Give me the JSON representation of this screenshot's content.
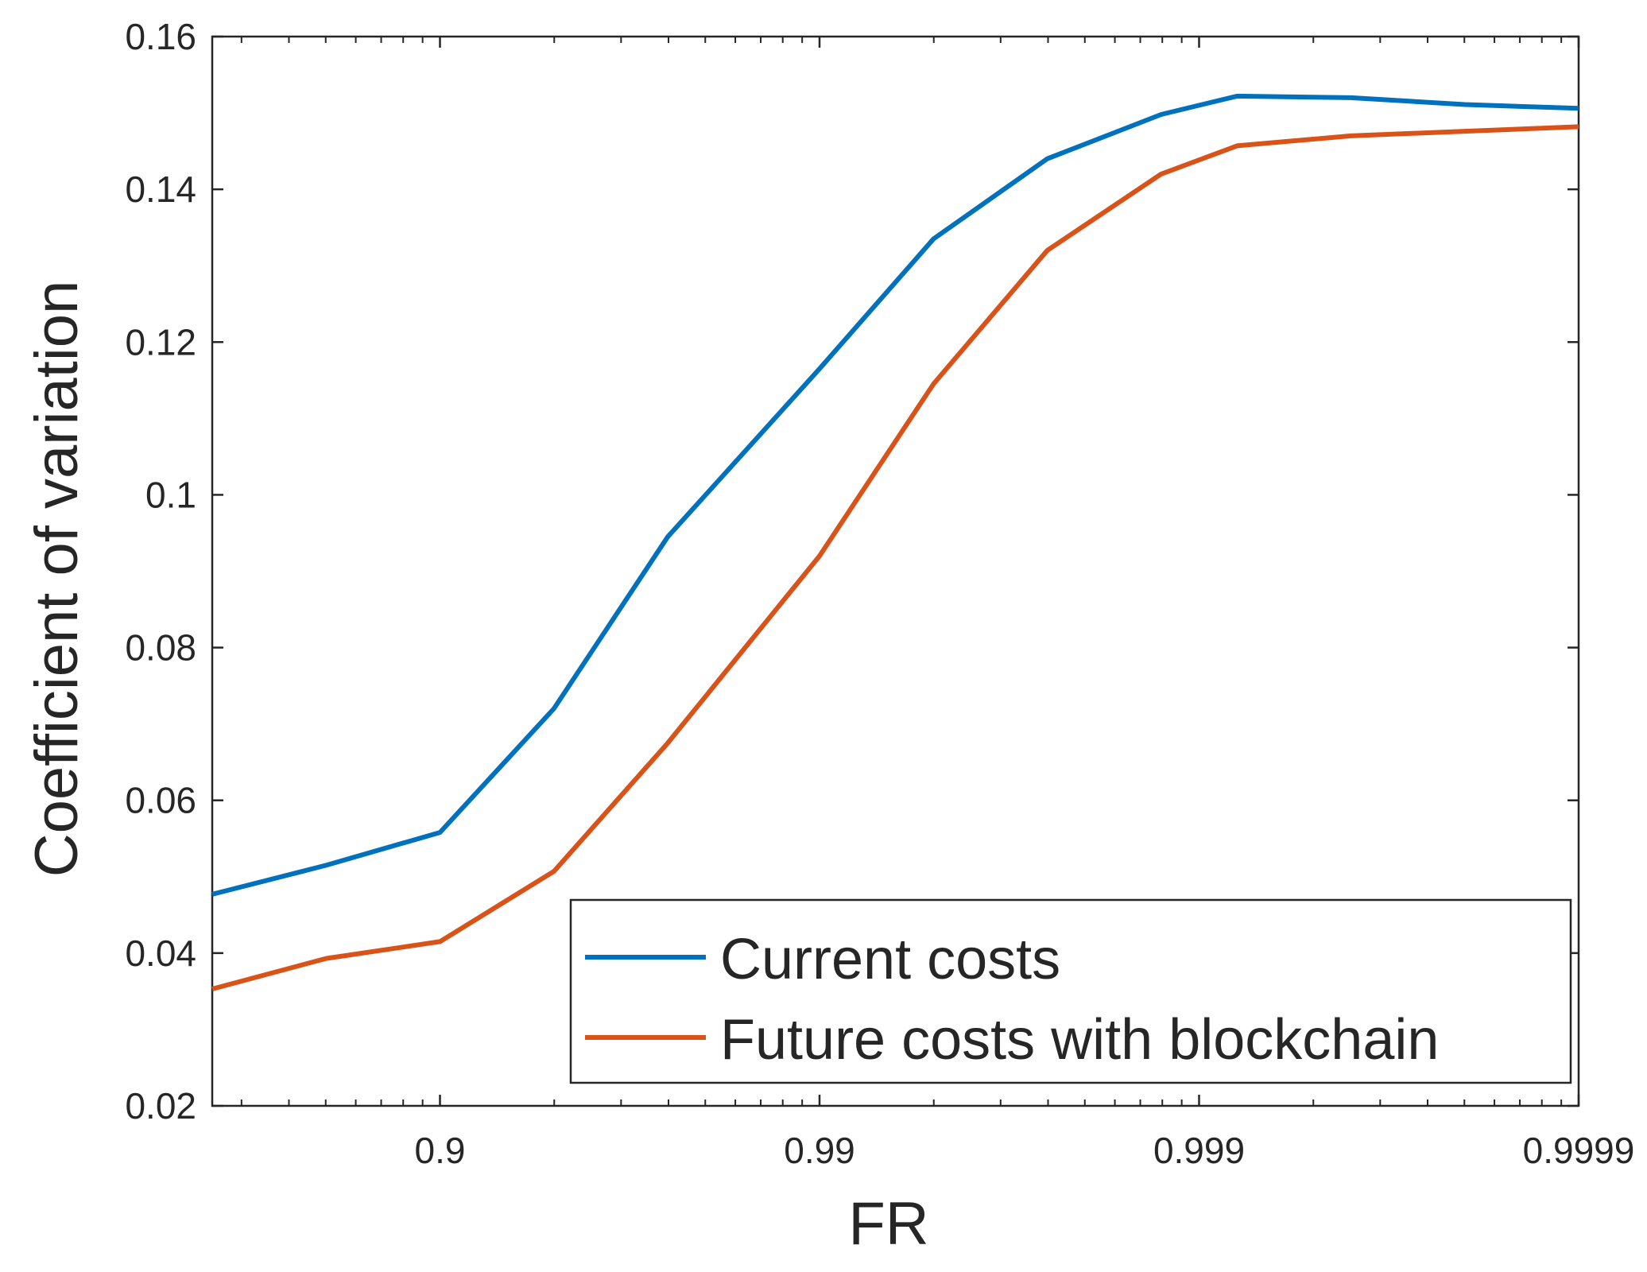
{
  "chart_data": {
    "type": "line",
    "title": "",
    "xlabel": "FR",
    "ylabel": "Coefficient of variation",
    "x_scale": "log10(1/(1-FR))",
    "x_ticks": [
      "0.9",
      "0.99",
      "0.999",
      "0.9999"
    ],
    "y_ticks": [
      "0.02",
      "0.04",
      "0.06",
      "0.08",
      "0.1",
      "0.12",
      "0.14",
      "0.16"
    ],
    "xlim_tvalue": [
      0.4,
      4.0
    ],
    "ylim": [
      0.02,
      0.16
    ],
    "grid": false,
    "legend_position": "bottom-right",
    "colors": {
      "current": "#0072BD",
      "future": "#D95319",
      "axis": "#262626"
    },
    "series": [
      {
        "name": "Current costs",
        "key": "current",
        "t": [
          0.4,
          0.7,
          1.0,
          1.3,
          1.6,
          2.0,
          2.3,
          2.6,
          2.9,
          3.1,
          3.4,
          3.7,
          4.0
        ],
        "values": [
          0.0477,
          0.0515,
          0.0558,
          0.072,
          0.0945,
          0.1165,
          0.1335,
          0.144,
          0.1498,
          0.1522,
          0.152,
          0.1511,
          0.1506
        ]
      },
      {
        "name": "Future costs with blockchain",
        "key": "future",
        "t": [
          0.4,
          0.7,
          1.0,
          1.3,
          1.6,
          2.0,
          2.3,
          2.6,
          2.9,
          3.1,
          3.4,
          3.7,
          4.0
        ],
        "values": [
          0.0353,
          0.0393,
          0.0415,
          0.0507,
          0.0675,
          0.092,
          0.1145,
          0.132,
          0.142,
          0.1457,
          0.147,
          0.1476,
          0.1482
        ]
      }
    ]
  }
}
